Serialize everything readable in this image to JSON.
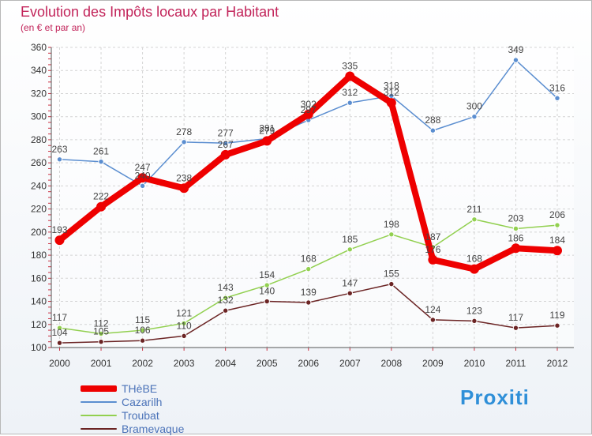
{
  "header": {
    "title": "Evolution des Impôts locaux par Habitant",
    "subtitle": "(en € et par an)"
  },
  "brand": {
    "logo": "Proxiti"
  },
  "chart_data": {
    "type": "line",
    "title": "Evolution des Impôts locaux par Habitant",
    "subtitle": "(en € et par an)",
    "xlabel": "",
    "ylabel": "",
    "x": [
      2000,
      2001,
      2002,
      2003,
      2004,
      2005,
      2006,
      2007,
      2008,
      2009,
      2010,
      2011,
      2012
    ],
    "ylim": [
      100,
      360
    ],
    "yticks": [
      100,
      120,
      140,
      160,
      180,
      200,
      220,
      240,
      260,
      280,
      300,
      320,
      340,
      360
    ],
    "grid": true,
    "legend_position": "bottom-left",
    "series": [
      {
        "name": "THèBE",
        "color": "#ee0000",
        "values": [
          193,
          222,
          247,
          238,
          267,
          279,
          302,
          335,
          312,
          176,
          168,
          186,
          184
        ]
      },
      {
        "name": "Cazarilh",
        "color": "#5b8ed0",
        "values": [
          263,
          261,
          240,
          278,
          277,
          281,
          297,
          312,
          318,
          288,
          300,
          349,
          316
        ]
      },
      {
        "name": "Troubat",
        "color": "#92d050",
        "values": [
          117,
          112,
          115,
          121,
          143,
          154,
          168,
          185,
          198,
          187,
          211,
          203,
          206
        ]
      },
      {
        "name": "Bramevaque",
        "color": "#6b2424",
        "values": [
          104,
          105,
          106,
          110,
          132,
          140,
          139,
          147,
          155,
          124,
          123,
          117,
          119
        ]
      }
    ]
  }
}
